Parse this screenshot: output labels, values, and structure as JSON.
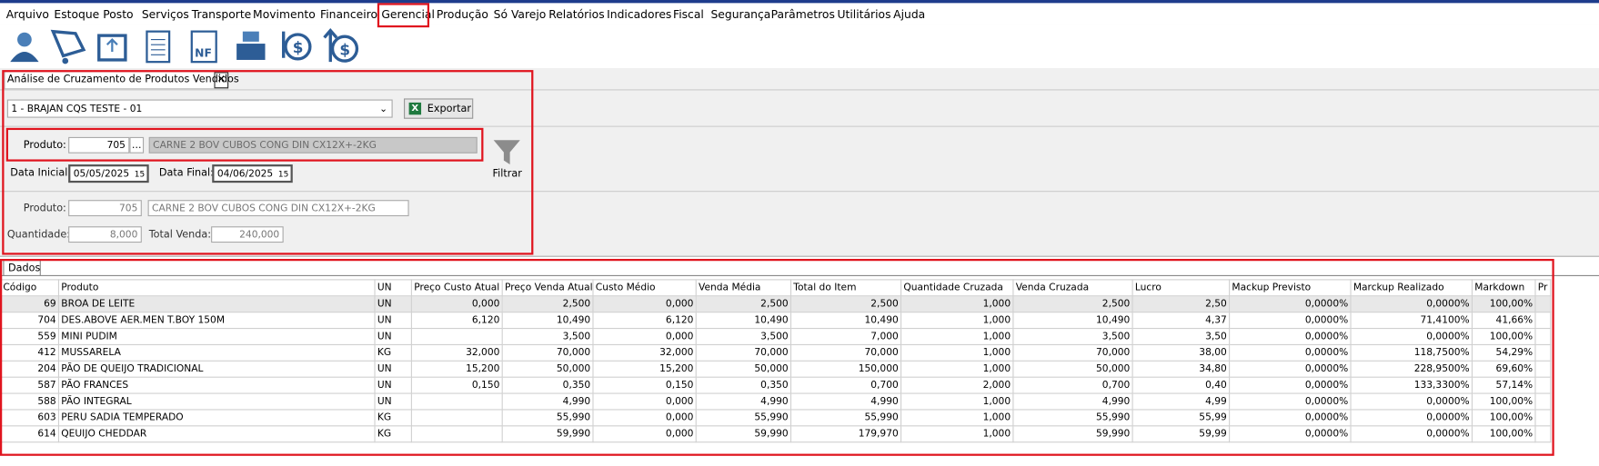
{
  "menu": {
    "items": [
      "Arquivo",
      "Estoque",
      "Posto",
      "Serviços",
      "Transporte",
      "Movimento",
      "Financeiro",
      "Gerencial",
      "Produção",
      "Só Varejo",
      "Relatórios",
      "Indicadores",
      "Fiscal",
      "Segurança",
      "Parâmetros",
      "Utilitários",
      "Ajuda"
    ],
    "active": 7
  },
  "tab": {
    "title": "Análise de Cruzamento de Produtos Vendidos"
  },
  "filter": {
    "company": "1 - BRAJAN CQS TESTE - 01",
    "export": "Exportar",
    "product_label": "Produto:",
    "product_code": "705",
    "product_desc": "CARNE 2 BOV CUBOS CONG DIN CX12X+-2KG",
    "start_label": "Data Inicial:",
    "start": "05/05/2025",
    "end_label": "Data Final:",
    "end": "04/06/2025",
    "button": "Filtrar"
  },
  "summary": {
    "product_label": "Produto:",
    "product_code": "705",
    "product_desc": "CARNE 2 BOV CUBOS CONG DIN CX12X+-2KG",
    "qty_label": "Quantidade:",
    "qty": "8,000",
    "total_label": "Total Venda:",
    "total": "240,000"
  },
  "grid_tab": "Dados",
  "table": {
    "columns": [
      "Código",
      "Produto",
      "UN",
      "Preço Custo Atual",
      "Preço Venda Atual",
      "Custo Médio",
      "Venda Média",
      "Total do Item",
      "Quantidade Cruzada",
      "Venda Cruzada",
      "Lucro",
      "Mackup Previsto",
      "Marckup Realizado",
      "Markdown",
      "Pr"
    ],
    "rows": [
      [
        "69",
        "BROA DE LEITE",
        "UN",
        "0,000",
        "2,500",
        "0,000",
        "2,500",
        "2,500",
        "1,000",
        "2,500",
        "2,50",
        "0,0000%",
        "0,0000%",
        "100,00%"
      ],
      [
        "704",
        "DES.ABOVE AER.MEN T.BOY 150M",
        "UN",
        "6,120",
        "10,490",
        "6,120",
        "10,490",
        "10,490",
        "1,000",
        "10,490",
        "4,37",
        "0,0000%",
        "71,4100%",
        "41,66%"
      ],
      [
        "559",
        "MINI PUDIM",
        "UN",
        null,
        "3,500",
        "0,000",
        "3,500",
        "7,000",
        "1,000",
        "3,500",
        "3,50",
        "0,0000%",
        "0,0000%",
        "100,00%"
      ],
      [
        "412",
        "MUSSARELA",
        "KG",
        "32,000",
        "70,000",
        "32,000",
        "70,000",
        "70,000",
        "1,000",
        "70,000",
        "38,00",
        "0,0000%",
        "118,7500%",
        "54,29%"
      ],
      [
        "204",
        "PÃO DE QUEIJO TRADICIONAL",
        "UN",
        "15,200",
        "50,000",
        "15,200",
        "50,000",
        "150,000",
        "1,000",
        "50,000",
        "34,80",
        "0,0000%",
        "228,9500%",
        "69,60%"
      ],
      [
        "587",
        "PÃO FRANCES",
        "UN",
        "0,150",
        "0,350",
        "0,150",
        "0,350",
        "0,700",
        "2,000",
        "0,700",
        "0,40",
        "0,0000%",
        "133,3300%",
        "57,14%"
      ],
      [
        "588",
        "PÃO INTEGRAL",
        "UN",
        null,
        "4,990",
        "0,000",
        "4,990",
        "4,990",
        "1,000",
        "4,990",
        "4,99",
        "0,0000%",
        "0,0000%",
        "100,00%"
      ],
      [
        "603",
        "PERU SADIA TEMPERADO",
        "KG",
        null,
        "55,990",
        "0,000",
        "55,990",
        "55,990",
        "1,000",
        "55,990",
        "55,99",
        "0,0000%",
        "0,0000%",
        "100,00%"
      ],
      [
        "614",
        "QEUIJO CHEDDAR",
        "KG",
        null,
        "59,990",
        "0,000",
        "59,990",
        "179,970",
        "1,000",
        "59,990",
        "59,99",
        "0,0000%",
        "0,0000%",
        "100,00%"
      ]
    ]
  }
}
